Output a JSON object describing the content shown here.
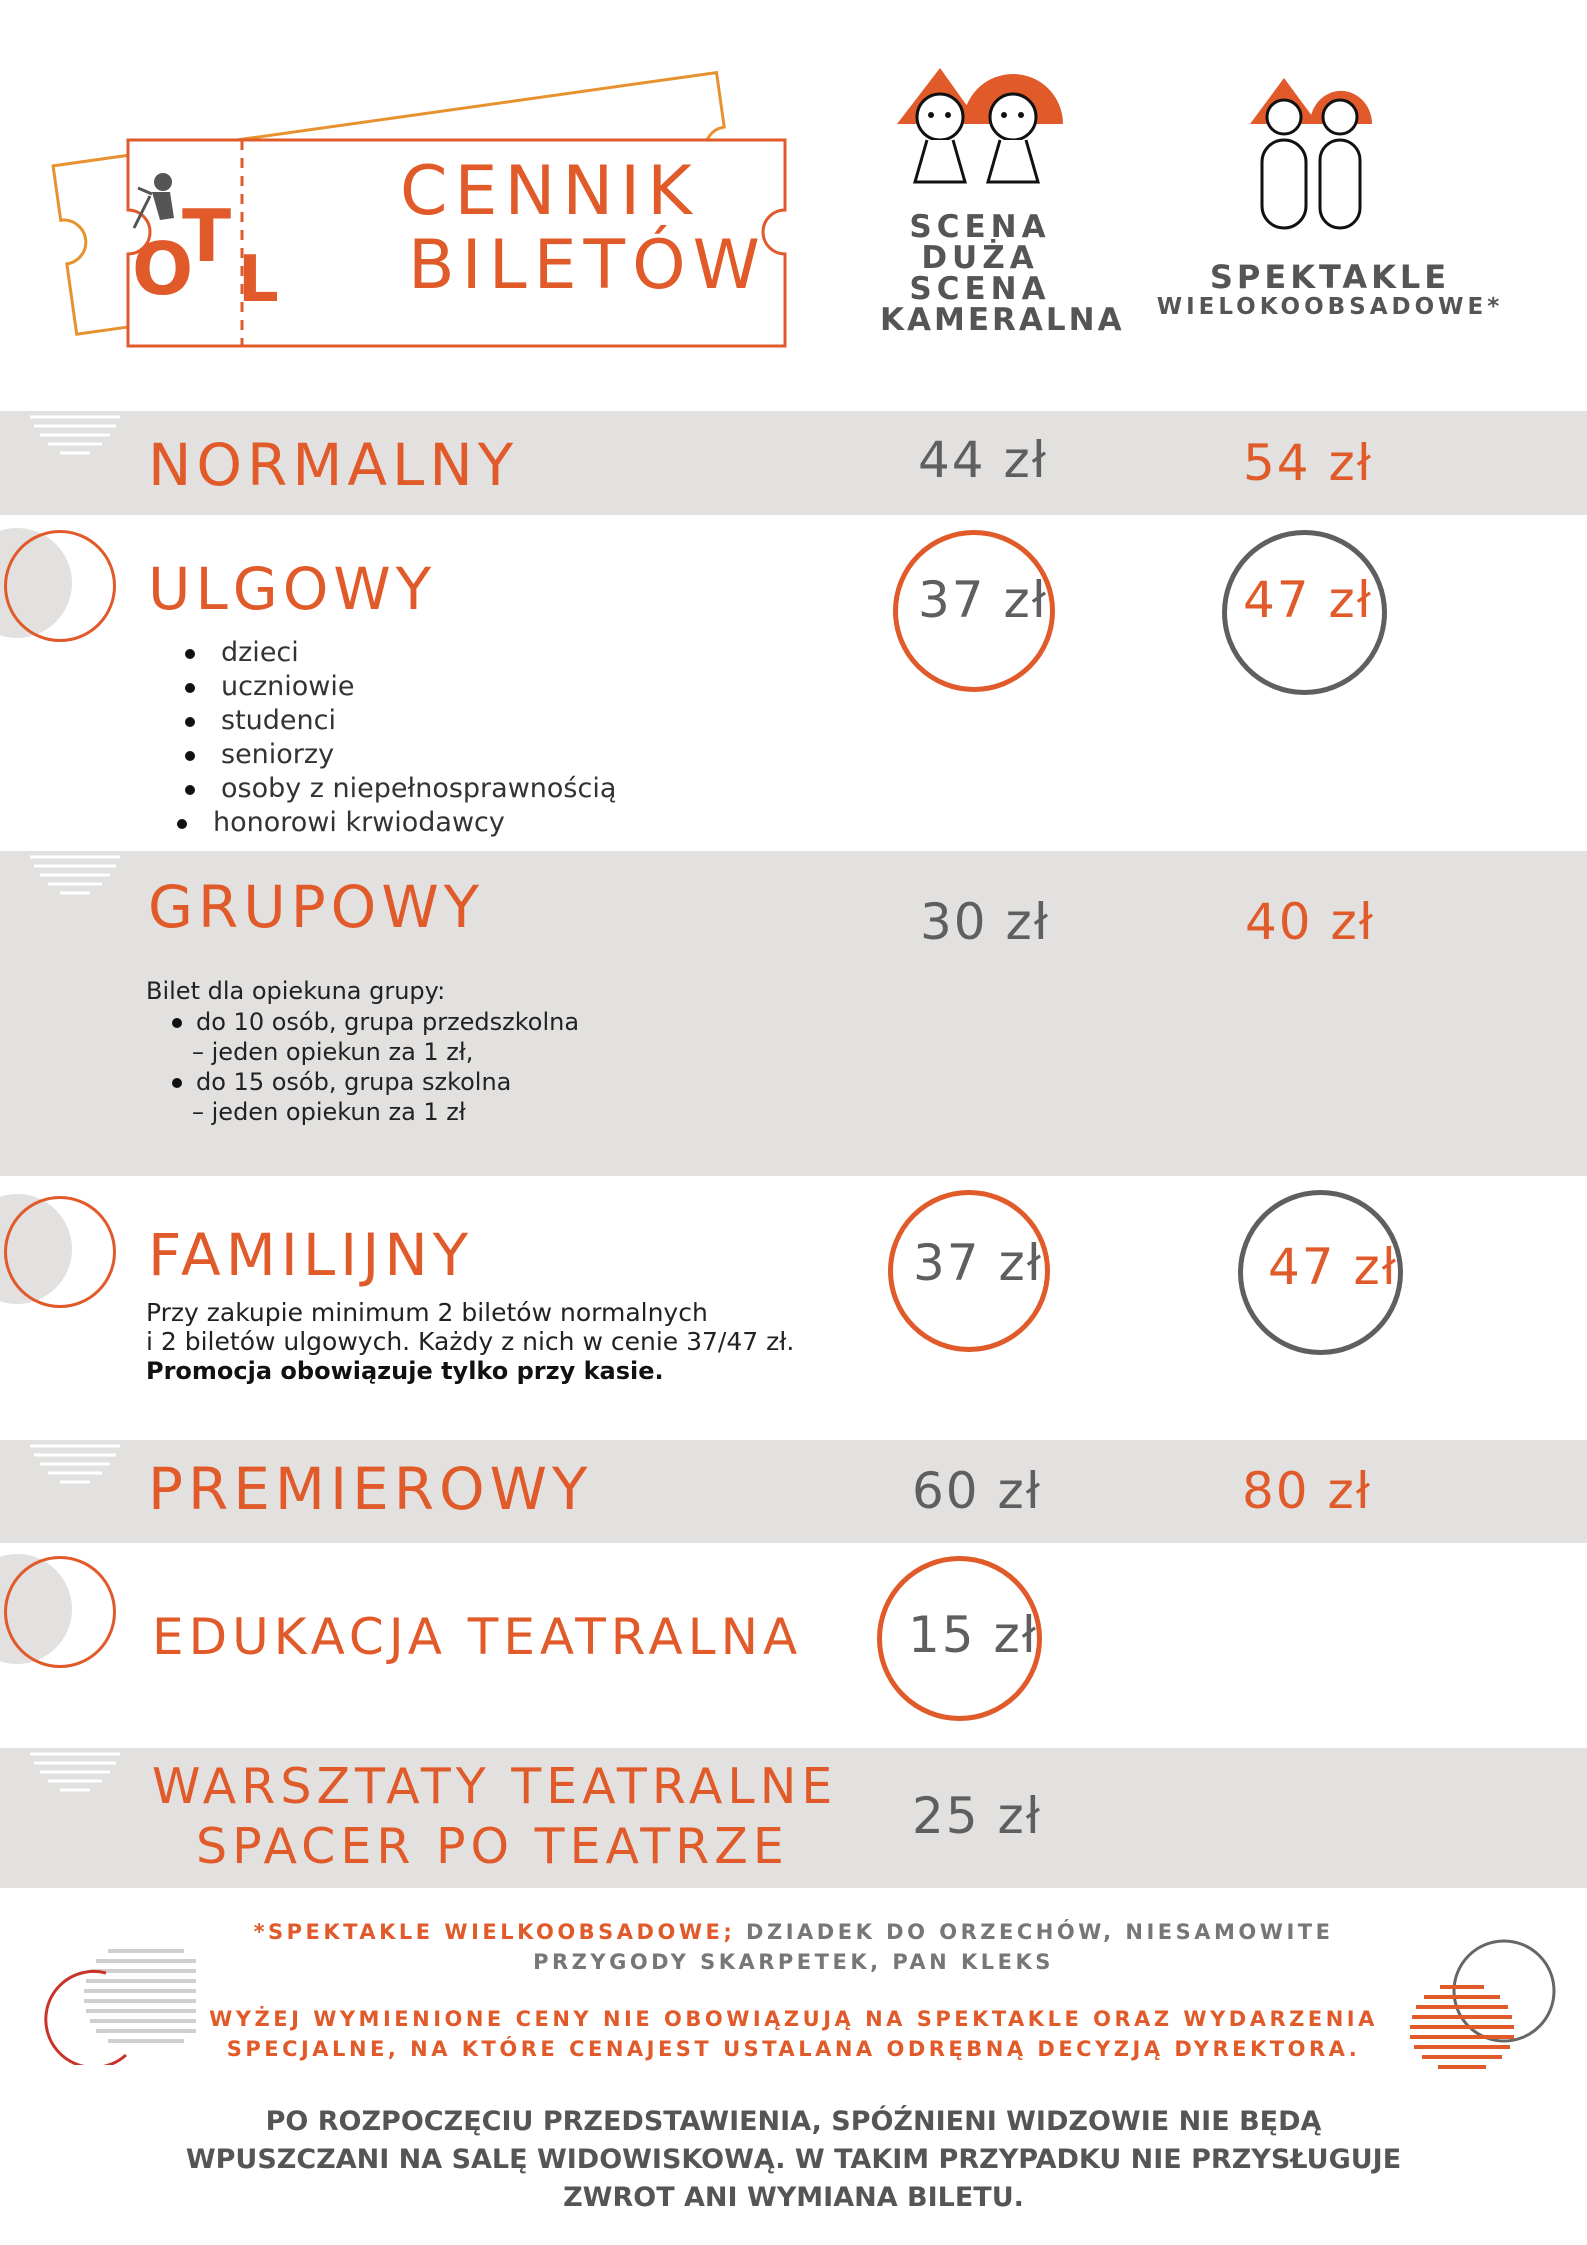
{
  "header": {
    "logo_text_o": "O",
    "logo_text_t": "T",
    "logo_text_l": "L",
    "title_line1": "CENNIK",
    "title_line2": "BILETÓW",
    "col1_lines": [
      "SCENA",
      "DUŻA",
      "SCENA",
      "KAMERALNA"
    ],
    "col2_line1": "SPEKTAKLE",
    "col2_line2": "WIELOKOOBSADOWE*"
  },
  "rows": {
    "normalny": {
      "label": "NORMALNY",
      "price1": "44 zł",
      "price2": "54 zł"
    },
    "ulgowy": {
      "label": "ULGOWY",
      "price1": "37 zł",
      "price2": "47 zł",
      "items": [
        "dzieci",
        "uczniowie",
        "studenci",
        "seniorzy",
        "osoby z niepełnosprawnością",
        "honorowi krwiodawcy"
      ]
    },
    "grupowy": {
      "label": "GRUPOWY",
      "price1": "30 zł",
      "price2": "40 zł",
      "intro": "Bilet dla opiekuna grupy:",
      "item1_line1": "do 10 osób, grupa przedszkolna",
      "item1_line2": "– jeden opiekun za 1 zł,",
      "item2_line1": "do 15 osób, grupa szkolna",
      "item2_line2": "– jeden opiekun za 1 zł"
    },
    "familijny": {
      "label": "FAMILIJNY",
      "price1": "37 zł",
      "price2": "47 zł",
      "desc_line1": "Przy zakupie minimum 2 biletów normalnych",
      "desc_line2": "i 2 biletów ulgowych. Każdy z nich w cenie 37/47 zł.",
      "desc_bold": "Promocja obowiązuje tylko przy kasie."
    },
    "premierowy": {
      "label": "PREMIEROWY",
      "price1": "60 zł",
      "price2": "80 zł"
    },
    "edukacja": {
      "label": "EDUKACJA TEATRALNA",
      "price1": "15 zł"
    },
    "warsztaty": {
      "label_line1": "WARSZTATY TEATRALNE",
      "label_line2": "SPACER PO TEATRZE",
      "price1": "25 zł"
    }
  },
  "footer": {
    "note1_highlight": "*SPEKTAKLE WIELKOOBSADOWE;",
    "note1_rest": " DZIADEK DO ORZECHÓW, NIESAMOWITE",
    "note1_line2": "PRZYGODY SKARPETEK, PAN KLEKS",
    "note2_line1": "WYŻEJ WYMIENIONE CENY NIE OBOWIĄZUJĄ NA SPEKTAKLE ORAZ WYDARZENIA",
    "note2_line2": "SPECJALNE, NA KTÓRE CENAJEST USTALANA ODRĘBNĄ DECYZJĄ DYREKTORA.",
    "note3_line1": "PO ROZPOCZĘCIU PRZEDSTAWIENIA, SPÓŹNIENI WIDZOWIE NIE BĘDĄ",
    "note3_line2": "WPUSZCZANI NA SALĘ WIDOWISKOWĄ. W TAKIM PRZYPADKU NIE PRZYSŁUGUJE",
    "note3_line3": "ZWROT ANI WYMIANA BILETU."
  },
  "colors": {
    "accent": "#e05a2a",
    "gray": "#5f5f5f",
    "band": "#e2e1df"
  }
}
